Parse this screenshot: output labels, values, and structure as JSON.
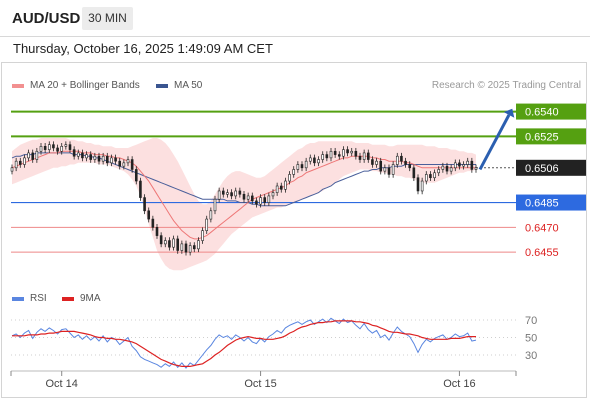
{
  "header": {
    "symbol": "AUD/USD",
    "timeframe": "30 MIN",
    "datetime": "Thursday, October 16, 2025 1:49:09 AM CET"
  },
  "legend": {
    "ma20_label": "MA 20 + Bollinger Bands",
    "ma50_label": "MA 50",
    "credit": "Research © 2025 Trading Central",
    "rsi_label": "RSI",
    "ma9_label": "9MA"
  },
  "colors": {
    "bg": "#ffffff",
    "band_fill": "#f9c6c6",
    "ma20": "#ee7777",
    "ma50": "#4a5f9a",
    "green_level": "#55a011",
    "blue_level": "#2d6ae0",
    "red_level": "#ee8888",
    "rsi": "#5a86e0",
    "rsi_ma": "#dd2222",
    "arrow": "#2b5fb0",
    "current_price": "#222222"
  },
  "chart_data": [
    {
      "type": "candlestick",
      "title": "AUD/USD 30 MIN",
      "x_tick_labels": [
        "Oct 14",
        "Oct 15",
        "Oct 16"
      ],
      "x_tick_index": [
        12,
        60,
        108
      ],
      "ylim": [
        0.6443,
        0.6547
      ],
      "current_price": 0.6506,
      "levels": [
        {
          "value": 0.654,
          "label": "0.6540",
          "kind": "resistance_target",
          "style": "green"
        },
        {
          "value": 0.6525,
          "label": "0.6525",
          "kind": "resistance",
          "style": "green"
        },
        {
          "value": 0.6485,
          "label": "0.6485",
          "kind": "pivot",
          "style": "blue"
        },
        {
          "value": 0.647,
          "label": "0.6470",
          "kind": "support",
          "style": "red"
        },
        {
          "value": 0.6455,
          "label": "0.6455",
          "kind": "support",
          "style": "red"
        }
      ],
      "forecast_arrow": {
        "from_value": 0.6505,
        "to_value": 0.6538
      },
      "close": [
        0.6506,
        0.651,
        0.6508,
        0.6512,
        0.6515,
        0.6511,
        0.6516,
        0.6519,
        0.6517,
        0.652,
        0.6518,
        0.6516,
        0.6519,
        0.652,
        0.6517,
        0.6513,
        0.6515,
        0.6512,
        0.6514,
        0.6511,
        0.6513,
        0.651,
        0.6513,
        0.6509,
        0.6512,
        0.651,
        0.6507,
        0.6509,
        0.6511,
        0.6505,
        0.6498,
        0.6488,
        0.648,
        0.6475,
        0.647,
        0.6465,
        0.646,
        0.6462,
        0.6458,
        0.6463,
        0.6456,
        0.646,
        0.6455,
        0.6459,
        0.6457,
        0.6462,
        0.6468,
        0.6475,
        0.648,
        0.6487,
        0.6492,
        0.649,
        0.6491,
        0.6489,
        0.6492,
        0.649,
        0.6487,
        0.6489,
        0.6486,
        0.6484,
        0.6488,
        0.6485,
        0.6489,
        0.6491,
        0.6495,
        0.6493,
        0.6498,
        0.6502,
        0.6505,
        0.6508,
        0.6506,
        0.651,
        0.6512,
        0.6509,
        0.6511,
        0.6514,
        0.6512,
        0.6516,
        0.6514,
        0.6513,
        0.6517,
        0.6515,
        0.6516,
        0.6513,
        0.6511,
        0.6515,
        0.6511,
        0.6508,
        0.651,
        0.6504,
        0.6506,
        0.6502,
        0.6508,
        0.6513,
        0.651,
        0.6508,
        0.6506,
        0.65,
        0.6492,
        0.6498,
        0.6502,
        0.65,
        0.6503,
        0.6505,
        0.6507,
        0.6504,
        0.6506,
        0.6509,
        0.6507,
        0.6508,
        0.651,
        0.6505,
        0.6506
      ],
      "ma20": [
        0.6506,
        0.6507,
        0.6508,
        0.6509,
        0.651,
        0.6511,
        0.6512,
        0.6513,
        0.6514,
        0.6515,
        0.6515,
        0.6515,
        0.6516,
        0.6516,
        0.6516,
        0.6516,
        0.6516,
        0.6515,
        0.6515,
        0.6515,
        0.6514,
        0.6514,
        0.6514,
        0.6513,
        0.6513,
        0.6512,
        0.6512,
        0.6511,
        0.651,
        0.6509,
        0.6507,
        0.6504,
        0.6501,
        0.6498,
        0.6494,
        0.649,
        0.6486,
        0.6482,
        0.6478,
        0.6474,
        0.6471,
        0.6468,
        0.6466,
        0.6464,
        0.6463,
        0.6463,
        0.6464,
        0.6465,
        0.6467,
        0.6469,
        0.6471,
        0.6473,
        0.6475,
        0.6477,
        0.6479,
        0.6481,
        0.6483,
        0.6485,
        0.6487,
        0.6488,
        0.6489,
        0.649,
        0.6491,
        0.6492,
        0.6493,
        0.6494,
        0.6495,
        0.6497,
        0.6498,
        0.65,
        0.6501,
        0.6503,
        0.6504,
        0.6505,
        0.6506,
        0.6507,
        0.6508,
        0.6509,
        0.651,
        0.6511,
        0.6512,
        0.6512,
        0.6513,
        0.6513,
        0.6513,
        0.6513,
        0.6513,
        0.6512,
        0.6512,
        0.6511,
        0.6511,
        0.651,
        0.651,
        0.651,
        0.651,
        0.6509,
        0.6509,
        0.6508,
        0.6507,
        0.6506,
        0.6506,
        0.6506,
        0.6506,
        0.6506,
        0.6506,
        0.6506,
        0.6506,
        0.6506,
        0.6506,
        0.6506,
        0.6506,
        0.6506,
        0.6506
      ],
      "bb_upper": [
        0.6516,
        0.6518,
        0.652,
        0.6521,
        0.6522,
        0.6523,
        0.6523,
        0.6524,
        0.6524,
        0.6524,
        0.6524,
        0.6524,
        0.6524,
        0.6524,
        0.6523,
        0.6523,
        0.6522,
        0.6522,
        0.6521,
        0.6521,
        0.652,
        0.652,
        0.6519,
        0.6519,
        0.6519,
        0.6518,
        0.6518,
        0.6518,
        0.6518,
        0.6519,
        0.652,
        0.6521,
        0.6522,
        0.6523,
        0.6524,
        0.6524,
        0.6523,
        0.6521,
        0.6518,
        0.6514,
        0.651,
        0.6505,
        0.65,
        0.6495,
        0.649,
        0.6486,
        0.6484,
        0.6484,
        0.6486,
        0.649,
        0.6494,
        0.6498,
        0.6501,
        0.6503,
        0.6504,
        0.6504,
        0.6503,
        0.6502,
        0.6501,
        0.65,
        0.65,
        0.6501,
        0.6503,
        0.6505,
        0.6507,
        0.6509,
        0.6511,
        0.6513,
        0.6515,
        0.6517,
        0.6518,
        0.652,
        0.6521,
        0.6521,
        0.6522,
        0.6522,
        0.6522,
        0.6522,
        0.6522,
        0.6522,
        0.6522,
        0.6522,
        0.6522,
        0.6521,
        0.6521,
        0.6521,
        0.6521,
        0.652,
        0.652,
        0.652,
        0.652,
        0.6519,
        0.6519,
        0.652,
        0.652,
        0.652,
        0.652,
        0.652,
        0.652,
        0.652,
        0.6519,
        0.6519,
        0.6519,
        0.6518,
        0.6518,
        0.6518,
        0.6517,
        0.6517,
        0.6516,
        0.6516,
        0.6515,
        0.6515,
        0.6514
      ],
      "bb_lower": [
        0.6496,
        0.6497,
        0.6498,
        0.6499,
        0.65,
        0.6501,
        0.6502,
        0.6503,
        0.6504,
        0.6505,
        0.6506,
        0.6506,
        0.6507,
        0.6507,
        0.6508,
        0.6508,
        0.6509,
        0.6509,
        0.6509,
        0.6509,
        0.6509,
        0.6508,
        0.6508,
        0.6508,
        0.6507,
        0.6506,
        0.6505,
        0.6504,
        0.6502,
        0.6499,
        0.6495,
        0.6489,
        0.6481,
        0.6472,
        0.6464,
        0.6456,
        0.6451,
        0.6447,
        0.6445,
        0.6444,
        0.6444,
        0.6444,
        0.6445,
        0.6446,
        0.6447,
        0.6448,
        0.6449,
        0.645,
        0.6452,
        0.6454,
        0.6457,
        0.646,
        0.6463,
        0.6466,
        0.6468,
        0.647,
        0.6472,
        0.6474,
        0.6476,
        0.6477,
        0.6478,
        0.6479,
        0.648,
        0.6481,
        0.6482,
        0.6482,
        0.6483,
        0.6484,
        0.6485,
        0.6486,
        0.6487,
        0.6488,
        0.6489,
        0.649,
        0.6491,
        0.6492,
        0.6494,
        0.6495,
        0.6497,
        0.6499,
        0.6501,
        0.6502,
        0.6503,
        0.6504,
        0.6505,
        0.6505,
        0.6505,
        0.6504,
        0.6504,
        0.6503,
        0.6503,
        0.6502,
        0.6502,
        0.6501,
        0.6501,
        0.65,
        0.65,
        0.6499,
        0.6498,
        0.6497,
        0.6497,
        0.6497,
        0.6497,
        0.6498,
        0.6499,
        0.65,
        0.6501,
        0.6502,
        0.6503,
        0.6503,
        0.6504,
        0.6504,
        0.6505
      ],
      "ma50": [
        0.6512,
        0.6513,
        0.6513,
        0.6514,
        0.6514,
        0.6514,
        0.6515,
        0.6515,
        0.6515,
        0.6515,
        0.6515,
        0.6515,
        0.6515,
        0.6515,
        0.6515,
        0.6514,
        0.6514,
        0.6514,
        0.6513,
        0.6513,
        0.6512,
        0.6512,
        0.6511,
        0.651,
        0.6509,
        0.6508,
        0.6507,
        0.6506,
        0.6505,
        0.6504,
        0.6503,
        0.6502,
        0.6501,
        0.65,
        0.6499,
        0.6498,
        0.6497,
        0.6496,
        0.6495,
        0.6494,
        0.6493,
        0.6492,
        0.6491,
        0.649,
        0.6489,
        0.6488,
        0.6487,
        0.6487,
        0.6487,
        0.6487,
        0.6487,
        0.6487,
        0.6486,
        0.6486,
        0.6486,
        0.6485,
        0.6485,
        0.6485,
        0.6484,
        0.6484,
        0.6483,
        0.6483,
        0.6483,
        0.6483,
        0.6483,
        0.6483,
        0.6483,
        0.6484,
        0.6485,
        0.6486,
        0.6487,
        0.6488,
        0.6489,
        0.649,
        0.6491,
        0.6493,
        0.6494,
        0.6495,
        0.6497,
        0.6498,
        0.6499,
        0.65,
        0.6501,
        0.6502,
        0.6503,
        0.6504,
        0.6504,
        0.6505,
        0.6505,
        0.6506,
        0.6506,
        0.6506,
        0.6507,
        0.6507,
        0.6507,
        0.6508,
        0.6508,
        0.6508,
        0.6508,
        0.6508,
        0.6508,
        0.6508,
        0.6508,
        0.6508,
        0.6508,
        0.6508,
        0.6508,
        0.6508,
        0.6508,
        0.6508,
        0.6508,
        0.6508,
        0.6508
      ]
    },
    {
      "type": "line",
      "title": "RSI",
      "ylim": [
        20,
        80
      ],
      "y_ticks": [
        30,
        50,
        70
      ],
      "series": [
        {
          "name": "RSI",
          "values": [
            52,
            54,
            50,
            55,
            58,
            49,
            56,
            60,
            57,
            61,
            58,
            54,
            59,
            60,
            55,
            50,
            53,
            48,
            52,
            47,
            51,
            46,
            52,
            45,
            50,
            48,
            42,
            46,
            50,
            40,
            35,
            28,
            25,
            23,
            21,
            19,
            16,
            20,
            17,
            22,
            16,
            21,
            15,
            21,
            18,
            24,
            30,
            36,
            41,
            48,
            53,
            50,
            52,
            48,
            53,
            50,
            46,
            50,
            45,
            43,
            49,
            45,
            51,
            54,
            58,
            55,
            61,
            64,
            66,
            68,
            65,
            68,
            70,
            65,
            68,
            71,
            67,
            72,
            69,
            66,
            71,
            67,
            69,
            64,
            60,
            66,
            59,
            55,
            58,
            50,
            53,
            47,
            55,
            62,
            57,
            54,
            51,
            43,
            33,
            42,
            48,
            45,
            49,
            51,
            53,
            48,
            50,
            54,
            51,
            52,
            55,
            46,
            47
          ]
        },
        {
          "name": "9MA",
          "values": [
            52,
            52,
            52,
            52,
            53,
            53,
            53,
            54,
            54,
            55,
            55,
            56,
            57,
            57,
            57,
            57,
            56,
            55,
            54,
            53,
            51,
            50,
            50,
            49,
            49,
            48,
            48,
            47,
            46,
            45,
            43,
            40,
            37,
            34,
            31,
            28,
            25,
            23,
            21,
            19,
            18,
            17,
            17,
            17,
            18,
            19,
            20,
            23,
            26,
            30,
            33,
            37,
            41,
            44,
            47,
            49,
            50,
            51,
            50,
            49,
            49,
            48,
            48,
            48,
            49,
            50,
            52,
            55,
            57,
            60,
            62,
            63,
            65,
            66,
            67,
            67,
            68,
            68,
            69,
            69,
            69,
            69,
            69,
            68,
            68,
            67,
            66,
            64,
            63,
            61,
            59,
            57,
            56,
            56,
            55,
            54,
            54,
            53,
            52,
            50,
            49,
            48,
            48,
            48,
            48,
            48,
            49,
            49,
            49,
            50,
            51,
            51,
            51
          ]
        }
      ]
    }
  ]
}
